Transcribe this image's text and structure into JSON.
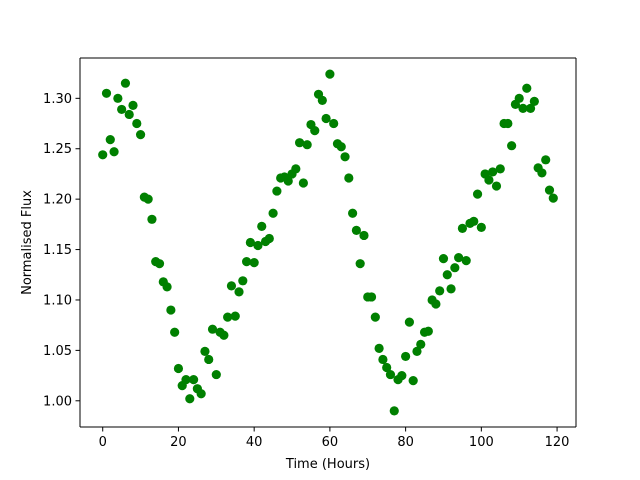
{
  "chart_data": {
    "type": "scatter",
    "title": "",
    "xlabel": "Time (Hours)",
    "ylabel": "Normalised Flux",
    "xlim": [
      -6,
      125
    ],
    "ylim": [
      0.974,
      1.34
    ],
    "xticks": [
      0,
      20,
      40,
      60,
      80,
      100,
      120
    ],
    "yticks": [
      1.0,
      1.05,
      1.1,
      1.15,
      1.2,
      1.25,
      1.3
    ],
    "ytick_labels": [
      "1.00",
      "1.05",
      "1.10",
      "1.15",
      "1.20",
      "1.25",
      "1.30"
    ],
    "grid": false,
    "marker_color": "#008000",
    "series": [
      {
        "x": [
          0,
          1,
          2,
          3,
          4,
          5,
          6,
          7,
          8,
          9,
          10,
          11,
          12,
          13,
          14,
          15,
          16,
          17,
          18,
          19,
          20,
          21,
          22,
          23,
          24,
          25,
          26,
          27,
          28,
          29,
          30,
          31,
          32,
          33,
          34,
          35,
          36,
          37,
          38,
          39,
          40,
          41,
          42,
          43,
          44,
          45,
          46,
          47,
          48,
          49,
          50,
          51,
          52,
          53,
          54,
          55,
          56,
          57,
          58,
          59,
          60,
          61,
          62,
          63,
          64,
          65,
          66,
          67,
          68,
          69,
          70,
          71,
          72,
          73,
          74,
          75,
          76,
          77,
          78,
          79,
          80,
          81,
          82,
          83,
          84,
          85,
          86,
          87,
          88,
          89,
          90,
          91,
          92,
          93,
          94,
          95,
          96,
          97,
          98,
          99,
          100,
          101,
          102,
          103,
          104,
          105,
          106,
          107,
          108,
          109,
          110,
          111,
          112,
          113,
          114,
          115,
          116,
          117,
          118,
          119
        ],
        "y": [
          1.244,
          1.305,
          1.259,
          1.247,
          1.3,
          1.289,
          1.315,
          1.284,
          1.293,
          1.275,
          1.264,
          1.202,
          1.2,
          1.18,
          1.138,
          1.136,
          1.118,
          1.113,
          1.09,
          1.068,
          1.032,
          1.015,
          1.021,
          1.002,
          1.021,
          1.012,
          1.007,
          1.049,
          1.041,
          1.071,
          1.026,
          1.068,
          1.065,
          1.083,
          1.114,
          1.084,
          1.108,
          1.119,
          1.138,
          1.157,
          1.137,
          1.154,
          1.173,
          1.158,
          1.161,
          1.186,
          1.208,
          1.221,
          1.222,
          1.218,
          1.225,
          1.23,
          1.256,
          1.216,
          1.254,
          1.274,
          1.268,
          1.304,
          1.298,
          1.28,
          1.324,
          1.275,
          1.255,
          1.252,
          1.242,
          1.221,
          1.186,
          1.169,
          1.136,
          1.164,
          1.103,
          1.103,
          1.083,
          1.052,
          1.041,
          1.033,
          1.026,
          0.99,
          1.021,
          1.025,
          1.044,
          1.078,
          1.02,
          1.049,
          1.056,
          1.068,
          1.069,
          1.1,
          1.096,
          1.109,
          1.141,
          1.125,
          1.111,
          1.132,
          1.142,
          1.171,
          1.139,
          1.176,
          1.178,
          1.205,
          1.172,
          1.225,
          1.219,
          1.227,
          1.213,
          1.23,
          1.275,
          1.275,
          1.253,
          1.294,
          1.3,
          1.29,
          1.31,
          1.29,
          1.297,
          1.231,
          1.226,
          1.239,
          1.209,
          1.201
        ]
      }
    ]
  }
}
